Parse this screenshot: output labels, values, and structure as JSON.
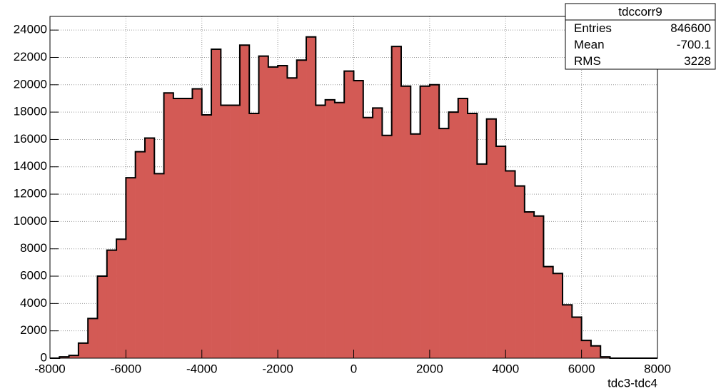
{
  "chart_data": {
    "type": "histogram",
    "xlabel": "tdc3-tdc4",
    "bins": [
      -8000,
      -7750,
      -7500,
      -7250,
      -7000,
      -6750,
      -6500,
      -6250,
      -6000,
      -5750,
      -5500,
      -5250,
      -5000,
      -4750,
      -4500,
      -4250,
      -4000,
      -3750,
      -3500,
      -3250,
      -3000,
      -2750,
      -2500,
      -2250,
      -2000,
      -1750,
      -1500,
      -1250,
      -1000,
      -750,
      -500,
      -250,
      0,
      250,
      500,
      750,
      1000,
      1250,
      1500,
      1750,
      2000,
      2250,
      2500,
      2750,
      3000,
      3250,
      3500,
      3750,
      4000,
      4250,
      4500,
      4750,
      5000,
      5250,
      5500,
      5750,
      6000,
      6250,
      6500,
      6750,
      7000,
      7250,
      7500,
      7750,
      8000
    ],
    "values": [
      0,
      100,
      200,
      1100,
      2900,
      6000,
      7900,
      8700,
      13200,
      15100,
      16100,
      13500,
      19400,
      19000,
      19000,
      19700,
      17800,
      22600,
      18500,
      18500,
      22900,
      17900,
      22100,
      21300,
      21400,
      20500,
      21800,
      23500,
      18500,
      18900,
      18700,
      21000,
      20300,
      17600,
      18300,
      16300,
      22800,
      19900,
      16400,
      19900,
      20000,
      16800,
      18000,
      19000,
      17900,
      14200,
      17500,
      15500,
      13700,
      12600,
      10700,
      10400,
      6700,
      6200,
      3900,
      3000,
      1300,
      900,
      100,
      0,
      0,
      0,
      0,
      0
    ],
    "color": "#d35a55",
    "xlim": [
      -8000,
      8000
    ],
    "xticks": [
      -8000,
      -6000,
      -4000,
      -2000,
      0,
      2000,
      4000,
      6000,
      8000
    ],
    "ylim": [
      0,
      25000
    ],
    "yticks": [
      0,
      2000,
      4000,
      6000,
      8000,
      10000,
      12000,
      14000,
      16000,
      18000,
      20000,
      22000,
      24000
    ],
    "grid": true,
    "stats": {
      "title": "tdccorr9",
      "rows": [
        [
          "Entries",
          "846600"
        ],
        [
          "Mean",
          "-700.1"
        ],
        [
          "RMS",
          "3228"
        ]
      ]
    }
  }
}
